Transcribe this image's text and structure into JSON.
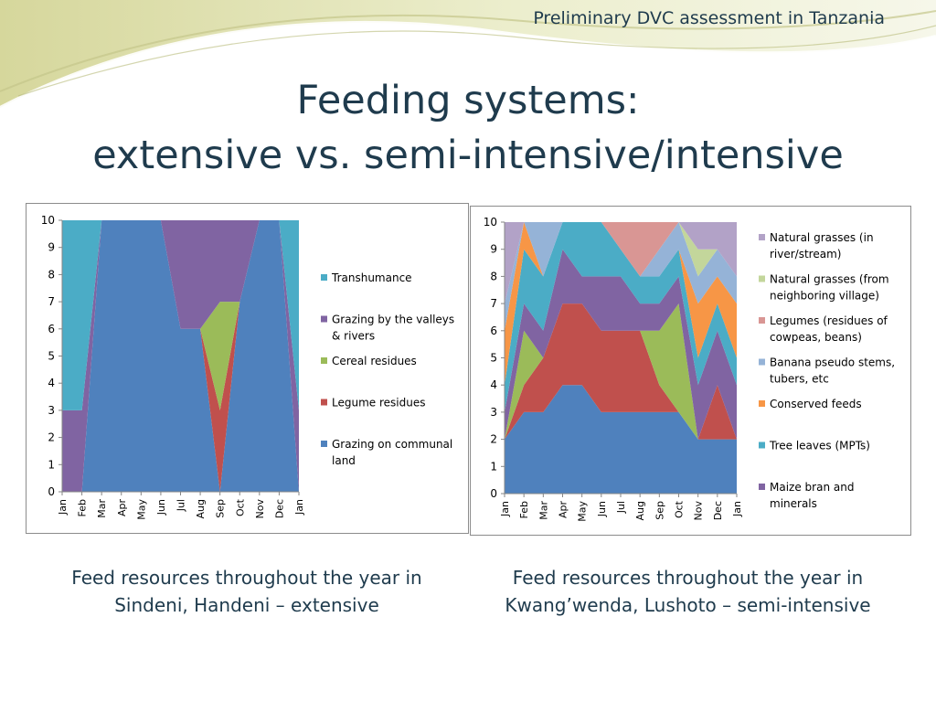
{
  "header": {
    "note": "Preliminary DVC assessment in Tanzania"
  },
  "title": {
    "line1": "Feeding systems:",
    "line2": "extensive vs. semi-intensive/intensive"
  },
  "captions": [
    {
      "line1": "Feed resources throughout the year in",
      "line2": "Sindeni, Handeni – extensive"
    },
    {
      "line1": "Feed resources throughout the year in",
      "line2": "Kwang’wenda, Lushoto – semi-intensive"
    }
  ],
  "chart_data": [
    {
      "type": "area",
      "stacked": true,
      "categories": [
        "Jan",
        "Feb",
        "Mar",
        "Apr",
        "May",
        "Jun",
        "Jul",
        "Aug",
        "Sep",
        "Oct",
        "Nov",
        "Dec",
        "Jan"
      ],
      "ylim": [
        0,
        10
      ],
      "yticks": [
        0,
        1,
        2,
        3,
        4,
        5,
        6,
        7,
        8,
        9,
        10
      ],
      "grid": false,
      "legend_position": "right",
      "series": [
        {
          "name": "Grazing on communal land",
          "color": "#4f81bd",
          "values": [
            0,
            0,
            10,
            10,
            10,
            10,
            6,
            6,
            0,
            7,
            10,
            10,
            0
          ]
        },
        {
          "name": "Legume residues",
          "color": "#c0504d",
          "values": [
            0,
            0,
            0,
            0,
            0,
            0,
            0,
            0,
            3,
            0,
            0,
            0,
            0
          ]
        },
        {
          "name": "Cereal  residues",
          "color": "#9bbb59",
          "values": [
            0,
            0,
            0,
            0,
            0,
            0,
            0,
            0,
            4,
            0,
            0,
            0,
            0
          ]
        },
        {
          "name": "Grazing by the valleys & rivers",
          "color": "#8064a2",
          "values": [
            3,
            3,
            0,
            0,
            0,
            0,
            4,
            4,
            3,
            3,
            0,
            0,
            3
          ]
        },
        {
          "name": "Transhumance",
          "color": "#4bacc6",
          "values": [
            7,
            7,
            0,
            0,
            0,
            0,
            0,
            0,
            0,
            0,
            0,
            0,
            7
          ]
        }
      ]
    },
    {
      "type": "area",
      "stacked": true,
      "categories": [
        "Jan",
        "Feb",
        "Mar",
        "Apr",
        "May",
        "Jun",
        "Jul",
        "Aug",
        "Sep",
        "Oct",
        "Nov",
        "Dec",
        "Jan"
      ],
      "ylim": [
        0,
        10
      ],
      "yticks": [
        0,
        1,
        2,
        3,
        4,
        5,
        6,
        7,
        8,
        9,
        10
      ],
      "grid": false,
      "legend_position": "right",
      "series": [
        {
          "name": "Grazing on communal land",
          "color": "#4f81bd",
          "values": [
            2,
            3,
            3,
            4,
            4,
            3,
            3,
            3,
            3,
            3,
            2,
            2,
            2
          ],
          "legend": false
        },
        {
          "name": "Legume residues",
          "color": "#c0504d",
          "values": [
            0,
            1,
            2,
            3,
            3,
            3,
            3,
            3,
            1,
            0,
            0,
            2,
            0
          ],
          "legend": false
        },
        {
          "name": "Cereal residues",
          "color": "#9bbb59",
          "values": [
            0,
            2,
            0,
            0,
            0,
            0,
            0,
            0,
            2,
            4,
            0,
            0,
            0
          ],
          "legend": false
        },
        {
          "name": "Maize bran and minerals",
          "color": "#8064a2",
          "values": [
            1,
            1,
            1,
            2,
            1,
            2,
            2,
            1,
            1,
            1,
            2,
            2,
            2
          ]
        },
        {
          "name": "Tree leaves (MPTs)",
          "color": "#4bacc6",
          "values": [
            1,
            2,
            2,
            1,
            2,
            2,
            1,
            1,
            1,
            1,
            1,
            1,
            1
          ]
        },
        {
          "name": "Conserved feeds",
          "color": "#f79646",
          "values": [
            2,
            1,
            0,
            0,
            0,
            0,
            0,
            0,
            0,
            0,
            2,
            1,
            2
          ]
        },
        {
          "name": "Banana pseudo stems, tubers, etc",
          "color": "#95b3d7",
          "values": [
            1,
            0,
            2,
            0,
            0,
            0,
            0,
            0,
            1,
            1,
            1,
            1,
            1
          ]
        },
        {
          "name": "Legumes (residues of cowpeas, beans)",
          "color": "#d99694",
          "values": [
            0,
            0,
            0,
            0,
            0,
            0,
            1,
            2,
            1,
            0,
            0,
            0,
            0
          ]
        },
        {
          "name": "Natural grasses (from neighboring village)",
          "color": "#c3d69b",
          "values": [
            0,
            0,
            0,
            0,
            0,
            0,
            0,
            0,
            0,
            0,
            1,
            0,
            0
          ]
        },
        {
          "name": "Natural grasses (in river/stream)",
          "color": "#b2a2c7",
          "values": [
            3,
            0,
            0,
            0,
            0,
            0,
            0,
            0,
            0,
            0,
            1,
            1,
            2
          ]
        }
      ]
    }
  ]
}
